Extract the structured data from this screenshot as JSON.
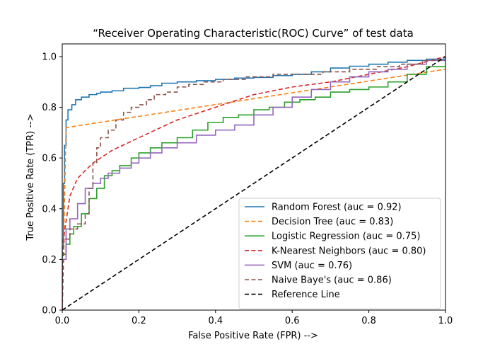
{
  "chart_data": {
    "type": "line",
    "title": "“Receiver Operating Characteristic(ROC) Curve” of test data",
    "xlabel": "False Positive Rate (FPR) -->",
    "ylabel": "True Positive Rate (TPR) -->",
    "xlim": [
      0.0,
      1.0
    ],
    "ylim": [
      0.0,
      1.05
    ],
    "xticks": [
      0.0,
      0.2,
      0.4,
      0.6,
      0.8,
      1.0
    ],
    "xtick_labels": [
      "0.0",
      "0.2",
      "0.4",
      "0.6",
      "0.8",
      "1.0"
    ],
    "yticks": [
      0.0,
      0.2,
      0.4,
      0.6,
      0.8,
      1.0
    ],
    "ytick_labels": [
      "0.0",
      "0.2",
      "0.4",
      "0.6",
      "0.8",
      "1.0"
    ],
    "grid": false,
    "legend_position": "lower-right",
    "series": [
      {
        "name": "Random Forest (auc = 0.92)",
        "color": "#1f77b4",
        "dash": "solid",
        "step": true,
        "points": [
          [
            0,
            0
          ],
          [
            0,
            0.25
          ],
          [
            0.003,
            0.5
          ],
          [
            0.006,
            0.65
          ],
          [
            0.01,
            0.75
          ],
          [
            0.015,
            0.79
          ],
          [
            0.025,
            0.81
          ],
          [
            0.035,
            0.83
          ],
          [
            0.05,
            0.84
          ],
          [
            0.07,
            0.85
          ],
          [
            0.09,
            0.855
          ],
          [
            0.1,
            0.86
          ],
          [
            0.13,
            0.865
          ],
          [
            0.16,
            0.875
          ],
          [
            0.2,
            0.878
          ],
          [
            0.23,
            0.885
          ],
          [
            0.26,
            0.895
          ],
          [
            0.3,
            0.9
          ],
          [
            0.35,
            0.905
          ],
          [
            0.4,
            0.91
          ],
          [
            0.45,
            0.915
          ],
          [
            0.5,
            0.918
          ],
          [
            0.55,
            0.925
          ],
          [
            0.6,
            0.93
          ],
          [
            0.65,
            0.94
          ],
          [
            0.7,
            0.955
          ],
          [
            0.75,
            0.962
          ],
          [
            0.8,
            0.97
          ],
          [
            0.85,
            0.978
          ],
          [
            0.9,
            0.985
          ],
          [
            0.95,
            0.99
          ],
          [
            1.0,
            1.0
          ]
        ]
      },
      {
        "name": "Decision Tree (auc = 0.83)",
        "color": "#ff7f0e",
        "dash": "dashed",
        "step": false,
        "points": [
          [
            0,
            0
          ],
          [
            0.01,
            0.72
          ],
          [
            1.0,
            0.95
          ]
        ]
      },
      {
        "name": "Logistic Regression (auc = 0.75)",
        "color": "#2ca02c",
        "dash": "solid",
        "step": true,
        "points": [
          [
            0,
            0
          ],
          [
            0,
            0.22
          ],
          [
            0.01,
            0.26
          ],
          [
            0.02,
            0.3
          ],
          [
            0.03,
            0.33
          ],
          [
            0.05,
            0.38
          ],
          [
            0.07,
            0.44
          ],
          [
            0.09,
            0.48
          ],
          [
            0.11,
            0.53
          ],
          [
            0.13,
            0.55
          ],
          [
            0.15,
            0.57
          ],
          [
            0.18,
            0.6
          ],
          [
            0.2,
            0.62
          ],
          [
            0.23,
            0.64
          ],
          [
            0.26,
            0.66
          ],
          [
            0.3,
            0.68
          ],
          [
            0.34,
            0.71
          ],
          [
            0.38,
            0.74
          ],
          [
            0.42,
            0.76
          ],
          [
            0.46,
            0.77
          ],
          [
            0.5,
            0.79
          ],
          [
            0.54,
            0.8
          ],
          [
            0.58,
            0.82
          ],
          [
            0.62,
            0.83
          ],
          [
            0.66,
            0.84
          ],
          [
            0.7,
            0.86
          ],
          [
            0.75,
            0.87
          ],
          [
            0.8,
            0.88
          ],
          [
            0.85,
            0.9
          ],
          [
            0.9,
            0.93
          ],
          [
            0.95,
            0.96
          ],
          [
            1.0,
            1.0
          ]
        ]
      },
      {
        "name": "K-Nearest Neighbors (auc = 0.80)",
        "color": "#d62728",
        "dash": "dashed",
        "step": false,
        "points": [
          [
            0,
            0
          ],
          [
            0.005,
            0.3
          ],
          [
            0.02,
            0.45
          ],
          [
            0.04,
            0.52
          ],
          [
            0.08,
            0.58
          ],
          [
            0.13,
            0.63
          ],
          [
            0.2,
            0.68
          ],
          [
            0.3,
            0.75
          ],
          [
            0.4,
            0.8
          ],
          [
            0.5,
            0.85
          ],
          [
            0.6,
            0.88
          ],
          [
            0.7,
            0.9
          ],
          [
            0.8,
            0.93
          ],
          [
            0.9,
            0.96
          ],
          [
            1.0,
            1.0
          ]
        ]
      },
      {
        "name": "SVM (auc = 0.76)",
        "color": "#9467bd",
        "dash": "solid",
        "step": true,
        "points": [
          [
            0,
            0
          ],
          [
            0,
            0.2
          ],
          [
            0.01,
            0.32
          ],
          [
            0.02,
            0.36
          ],
          [
            0.04,
            0.42
          ],
          [
            0.06,
            0.48
          ],
          [
            0.08,
            0.5
          ],
          [
            0.1,
            0.52
          ],
          [
            0.12,
            0.54
          ],
          [
            0.15,
            0.56
          ],
          [
            0.18,
            0.58
          ],
          [
            0.2,
            0.6
          ],
          [
            0.23,
            0.62
          ],
          [
            0.26,
            0.64
          ],
          [
            0.3,
            0.66
          ],
          [
            0.35,
            0.69
          ],
          [
            0.4,
            0.71
          ],
          [
            0.45,
            0.73
          ],
          [
            0.5,
            0.77
          ],
          [
            0.55,
            0.8
          ],
          [
            0.6,
            0.84
          ],
          [
            0.65,
            0.87
          ],
          [
            0.7,
            0.9
          ],
          [
            0.75,
            0.92
          ],
          [
            0.8,
            0.94
          ],
          [
            0.85,
            0.95
          ],
          [
            0.9,
            0.97
          ],
          [
            0.95,
            0.985
          ],
          [
            1.0,
            1.0
          ]
        ]
      },
      {
        "name": "Naive Baye's (auc = 0.86)",
        "color": "#8c564b",
        "dash": "dashed",
        "step": true,
        "points": [
          [
            0,
            0
          ],
          [
            0,
            0.28
          ],
          [
            0.02,
            0.32
          ],
          [
            0.04,
            0.34
          ],
          [
            0.06,
            0.38
          ],
          [
            0.07,
            0.48
          ],
          [
            0.08,
            0.58
          ],
          [
            0.09,
            0.64
          ],
          [
            0.1,
            0.68
          ],
          [
            0.12,
            0.71
          ],
          [
            0.14,
            0.75
          ],
          [
            0.16,
            0.78
          ],
          [
            0.18,
            0.8
          ],
          [
            0.2,
            0.81
          ],
          [
            0.22,
            0.83
          ],
          [
            0.24,
            0.85
          ],
          [
            0.27,
            0.86
          ],
          [
            0.3,
            0.88
          ],
          [
            0.33,
            0.89
          ],
          [
            0.37,
            0.9
          ],
          [
            0.42,
            0.91
          ],
          [
            0.48,
            0.92
          ],
          [
            0.55,
            0.93
          ],
          [
            0.62,
            0.93
          ],
          [
            0.68,
            0.94
          ],
          [
            0.75,
            0.95
          ],
          [
            0.82,
            0.96
          ],
          [
            0.88,
            0.97
          ],
          [
            0.94,
            0.985
          ],
          [
            1.0,
            1.0
          ]
        ]
      },
      {
        "name": "Reference Line",
        "color": "#000000",
        "dash": "dashed",
        "step": false,
        "points": [
          [
            0,
            0
          ],
          [
            1,
            1
          ]
        ]
      }
    ]
  }
}
